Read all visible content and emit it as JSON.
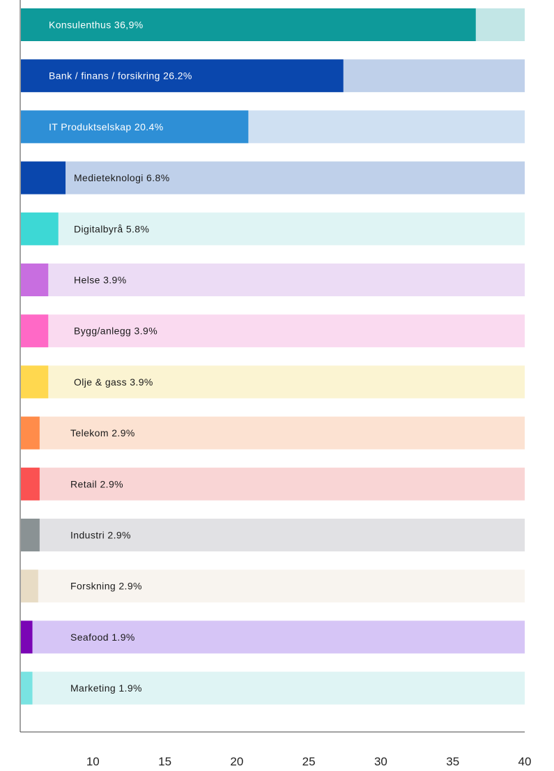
{
  "chart_data": {
    "type": "bar",
    "orientation": "horizontal",
    "title": "",
    "xlabel": "",
    "ylabel": "",
    "xlim": [
      5,
      40
    ],
    "x_ticks": [
      10,
      15,
      20,
      25,
      30,
      35,
      40
    ],
    "x_tick_labels": [
      "10",
      "15",
      "20",
      "25",
      "30",
      "35",
      "40"
    ],
    "grid": false,
    "legend": "none",
    "bars": [
      {
        "label": "Konsulenthus 36,9%",
        "value": 36.6,
        "color": "#0e9a9a",
        "track_color": "#c2e6e6",
        "label_color": "#ffffff",
        "label_offset": 40
      },
      {
        "label": "Bank / finans / forsikring 26.2%",
        "value": 27.4,
        "color": "#0a47ad",
        "track_color": "#bfd0ea",
        "label_color": "#ffffff",
        "label_offset": 40
      },
      {
        "label": "IT Produktselskap 20.4%",
        "value": 20.8,
        "color": "#2e8fd6",
        "track_color": "#cfe0f2",
        "label_color": "#ffffff",
        "label_offset": 40
      },
      {
        "label": "Medieteknologi 6.8%",
        "value": 8.1,
        "color": "#0a47ad",
        "track_color": "#bfd0ea",
        "label_color": "#1a1a1a",
        "label_offset": 76
      },
      {
        "label": "Digitalbyrå 5.8%",
        "value": 7.6,
        "color": "#3dd8d5",
        "track_color": "#dff4f4",
        "label_color": "#1a1a1a",
        "label_offset": 76
      },
      {
        "label": "Helse 3.9%",
        "value": 6.9,
        "color": "#c86ee0",
        "track_color": "#ecdcf5",
        "label_color": "#1a1a1a",
        "label_offset": 76
      },
      {
        "label": "Bygg/anlegg 3.9%",
        "value": 6.9,
        "color": "#ff69c6",
        "track_color": "#fadaf0",
        "label_color": "#1a1a1a",
        "label_offset": 76
      },
      {
        "label": "Olje & gass 3.9%",
        "value": 6.9,
        "color": "#ffd84f",
        "track_color": "#fbf4d2",
        "label_color": "#1a1a1a",
        "label_offset": 76
      },
      {
        "label": "Telekom 2.9%",
        "value": 6.3,
        "color": "#ff8c4a",
        "track_color": "#fce2d2",
        "label_color": "#1a1a1a",
        "label_offset": 71
      },
      {
        "label": "Retail 2.9%",
        "value": 6.3,
        "color": "#fb5252",
        "track_color": "#f9d5d5",
        "label_color": "#1a1a1a",
        "label_offset": 71
      },
      {
        "label": "Industri 2.9%",
        "value": 6.3,
        "color": "#8a9294",
        "track_color": "#e1e1e4",
        "label_color": "#1a1a1a",
        "label_offset": 71
      },
      {
        "label": "Forskning 2.9%",
        "value": 6.2,
        "color": "#e8dcc5",
        "track_color": "#f8f4ef",
        "label_color": "#1a1a1a",
        "label_offset": 71
      },
      {
        "label": "Seafood 1.9%",
        "value": 5.8,
        "color": "#7a05b5",
        "track_color": "#d6c5f6",
        "label_color": "#1a1a1a",
        "label_offset": 71
      },
      {
        "label": "Marketing 1.9%",
        "value": 5.8,
        "color": "#79e3e2",
        "track_color": "#dff4f4",
        "label_color": "#1a1a1a",
        "label_offset": 71
      }
    ]
  }
}
